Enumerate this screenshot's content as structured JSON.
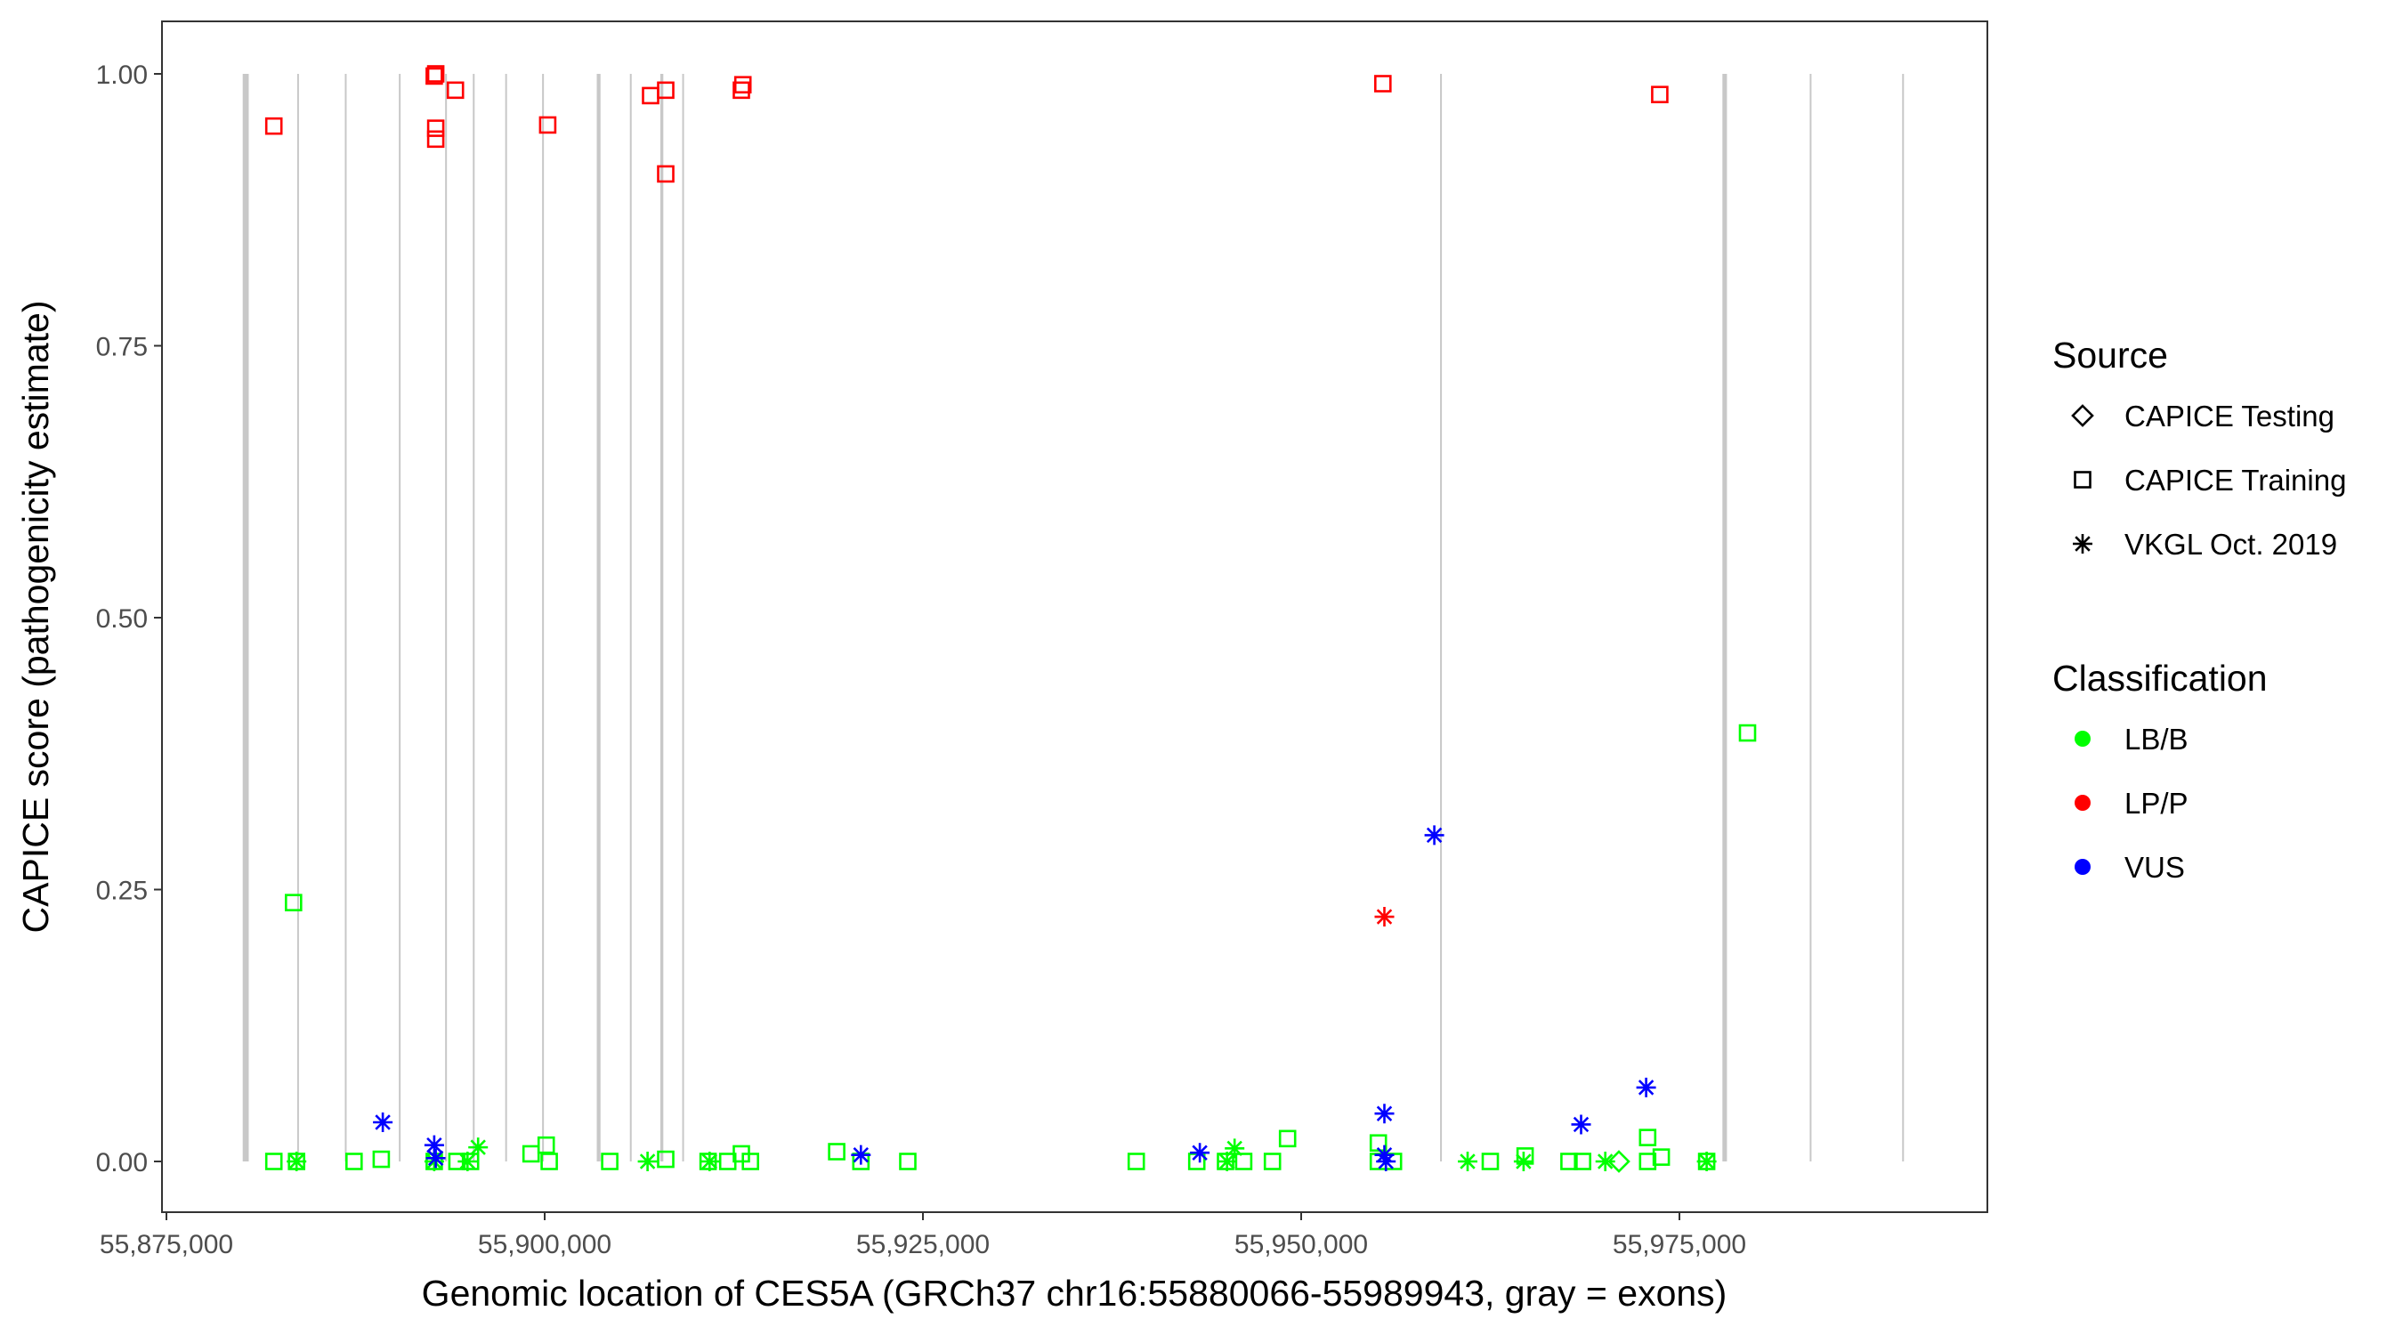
{
  "chart_data": {
    "type": "scatter",
    "xlabel": "Genomic location of CES5A (GRCh37 chr16:55880066-55989943, gray = exons)",
    "ylabel": "CAPICE score (pathogenicity estimate)",
    "xlim": [
      55874700,
      55995400
    ],
    "ylim": [
      -0.047,
      1.048
    ],
    "x_ticks": [
      55875000,
      55900000,
      55925000,
      55950000,
      55975000
    ],
    "x_tick_labels": [
      "55,875,000",
      "55,900,000",
      "55,925,000",
      "55,950,000",
      "55,975,000"
    ],
    "y_ticks": [
      0,
      0.25,
      0.5,
      0.75,
      1.0
    ],
    "y_tick_labels": [
      "0.00",
      "0.25",
      "0.50",
      "0.75",
      "1.00"
    ],
    "grid": false,
    "exon_color": "#c8c8c8",
    "exons": [
      [
        55880100,
        55880500
      ],
      [
        55883700,
        55883800
      ],
      [
        55886850,
        55886950
      ],
      [
        55890420,
        55890520
      ],
      [
        55893480,
        55893580
      ],
      [
        55895310,
        55895410
      ],
      [
        55897450,
        55897550
      ],
      [
        55899890,
        55899990
      ],
      [
        55903500,
        55903750
      ],
      [
        55905690,
        55905790
      ],
      [
        55907700,
        55907900
      ],
      [
        55909150,
        55909250
      ],
      [
        55959240,
        55959340
      ],
      [
        55977900,
        55978200
      ],
      [
        55983670,
        55983770
      ],
      [
        55989780,
        55989880
      ]
    ],
    "legend": {
      "placement": "right",
      "source_title": "Source",
      "source_items": [
        {
          "label": "CAPICE Testing",
          "shape": "diamond"
        },
        {
          "label": "CAPICE Training",
          "shape": "square"
        },
        {
          "label": "VKGL Oct. 2019",
          "shape": "star"
        }
      ],
      "class_title": "Classification",
      "class_items": [
        {
          "label": "LB/B",
          "color": "#00ff00"
        },
        {
          "label": "LP/P",
          "color": "#ff0000"
        },
        {
          "label": "VUS",
          "color": "#0000ff"
        }
      ]
    },
    "colors": {
      "LB/B": "#00ff00",
      "LP/P": "#ff0000",
      "VUS": "#0000ff"
    },
    "points": [
      {
        "x": 55882100,
        "y": 0.952,
        "shape": "square",
        "cls": "LP/P"
      },
      {
        "x": 55892700,
        "y": 0.998,
        "shape": "square",
        "cls": "LP/P"
      },
      {
        "x": 55892800,
        "y": 1.0,
        "shape": "square",
        "cls": "LP/P"
      },
      {
        "x": 55892800,
        "y": 0.95,
        "shape": "square",
        "cls": "LP/P"
      },
      {
        "x": 55892800,
        "y": 0.94,
        "shape": "square",
        "cls": "LP/P"
      },
      {
        "x": 55894100,
        "y": 0.985,
        "shape": "square",
        "cls": "LP/P"
      },
      {
        "x": 55900200,
        "y": 0.953,
        "shape": "square",
        "cls": "LP/P"
      },
      {
        "x": 55907000,
        "y": 0.98,
        "shape": "square",
        "cls": "LP/P"
      },
      {
        "x": 55908000,
        "y": 0.985,
        "shape": "square",
        "cls": "LP/P"
      },
      {
        "x": 55908000,
        "y": 0.908,
        "shape": "square",
        "cls": "LP/P"
      },
      {
        "x": 55913000,
        "y": 0.985,
        "shape": "square",
        "cls": "LP/P"
      },
      {
        "x": 55913100,
        "y": 0.99,
        "shape": "square",
        "cls": "LP/P"
      },
      {
        "x": 55955400,
        "y": 0.991,
        "shape": "square",
        "cls": "LP/P"
      },
      {
        "x": 55973700,
        "y": 0.981,
        "shape": "square",
        "cls": "LP/P"
      },
      {
        "x": 55955500,
        "y": 0.225,
        "shape": "star",
        "cls": "LP/P"
      },
      {
        "x": 55883400,
        "y": 0.238,
        "shape": "square",
        "cls": "LB/B"
      },
      {
        "x": 55979500,
        "y": 0.394,
        "shape": "square",
        "cls": "LB/B"
      },
      {
        "x": 55882100,
        "y": 0.0,
        "shape": "square",
        "cls": "LB/B"
      },
      {
        "x": 55883600,
        "y": 0.0,
        "shape": "square",
        "cls": "LB/B"
      },
      {
        "x": 55887400,
        "y": 0.0,
        "shape": "square",
        "cls": "LB/B"
      },
      {
        "x": 55889200,
        "y": 0.002,
        "shape": "square",
        "cls": "LB/B"
      },
      {
        "x": 55892700,
        "y": 0.0,
        "shape": "square",
        "cls": "LB/B"
      },
      {
        "x": 55894200,
        "y": 0.0,
        "shape": "square",
        "cls": "LB/B"
      },
      {
        "x": 55895100,
        "y": 0.0,
        "shape": "square",
        "cls": "LB/B"
      },
      {
        "x": 55899100,
        "y": 0.007,
        "shape": "square",
        "cls": "LB/B"
      },
      {
        "x": 55900100,
        "y": 0.015,
        "shape": "square",
        "cls": "LB/B"
      },
      {
        "x": 55900300,
        "y": 0.0,
        "shape": "square",
        "cls": "LB/B"
      },
      {
        "x": 55904300,
        "y": 0.0,
        "shape": "square",
        "cls": "LB/B"
      },
      {
        "x": 55908000,
        "y": 0.002,
        "shape": "square",
        "cls": "LB/B"
      },
      {
        "x": 55910800,
        "y": 0.0,
        "shape": "square",
        "cls": "LB/B"
      },
      {
        "x": 55912100,
        "y": 0.0,
        "shape": "square",
        "cls": "LB/B"
      },
      {
        "x": 55913000,
        "y": 0.007,
        "shape": "square",
        "cls": "LB/B"
      },
      {
        "x": 55913600,
        "y": 0.0,
        "shape": "square",
        "cls": "LB/B"
      },
      {
        "x": 55919300,
        "y": 0.009,
        "shape": "square",
        "cls": "LB/B"
      },
      {
        "x": 55920900,
        "y": 0.0,
        "shape": "square",
        "cls": "LB/B"
      },
      {
        "x": 55924000,
        "y": 0.0,
        "shape": "square",
        "cls": "LB/B"
      },
      {
        "x": 55939100,
        "y": 0.0,
        "shape": "square",
        "cls": "LB/B"
      },
      {
        "x": 55943100,
        "y": 0.0,
        "shape": "square",
        "cls": "LB/B"
      },
      {
        "x": 55945000,
        "y": 0.0,
        "shape": "square",
        "cls": "LB/B"
      },
      {
        "x": 55946200,
        "y": 0.0,
        "shape": "square",
        "cls": "LB/B"
      },
      {
        "x": 55948100,
        "y": 0.0,
        "shape": "square",
        "cls": "LB/B"
      },
      {
        "x": 55949100,
        "y": 0.021,
        "shape": "square",
        "cls": "LB/B"
      },
      {
        "x": 55955100,
        "y": 0.017,
        "shape": "square",
        "cls": "LB/B"
      },
      {
        "x": 55955100,
        "y": 0.0,
        "shape": "square",
        "cls": "LB/B"
      },
      {
        "x": 55956100,
        "y": 0.0,
        "shape": "square",
        "cls": "LB/B"
      },
      {
        "x": 55962500,
        "y": 0.0,
        "shape": "square",
        "cls": "LB/B"
      },
      {
        "x": 55964800,
        "y": 0.005,
        "shape": "square",
        "cls": "LB/B"
      },
      {
        "x": 55967700,
        "y": 0.0,
        "shape": "square",
        "cls": "LB/B"
      },
      {
        "x": 55968600,
        "y": 0.0,
        "shape": "square",
        "cls": "LB/B"
      },
      {
        "x": 55972900,
        "y": 0.022,
        "shape": "square",
        "cls": "LB/B"
      },
      {
        "x": 55972900,
        "y": 0.0,
        "shape": "square",
        "cls": "LB/B"
      },
      {
        "x": 55973800,
        "y": 0.004,
        "shape": "square",
        "cls": "LB/B"
      },
      {
        "x": 55976800,
        "y": 0.0,
        "shape": "square",
        "cls": "LB/B"
      },
      {
        "x": 55883600,
        "y": 0.0,
        "shape": "star",
        "cls": "LB/B"
      },
      {
        "x": 55892700,
        "y": 0.0,
        "shape": "star",
        "cls": "LB/B"
      },
      {
        "x": 55895600,
        "y": 0.013,
        "shape": "star",
        "cls": "LB/B"
      },
      {
        "x": 55894900,
        "y": 0.0,
        "shape": "star",
        "cls": "LB/B"
      },
      {
        "x": 55906800,
        "y": 0.0,
        "shape": "star",
        "cls": "LB/B"
      },
      {
        "x": 55910900,
        "y": 0.0,
        "shape": "star",
        "cls": "LB/B"
      },
      {
        "x": 55945600,
        "y": 0.012,
        "shape": "star",
        "cls": "LB/B"
      },
      {
        "x": 55945100,
        "y": 0.0,
        "shape": "star",
        "cls": "LB/B"
      },
      {
        "x": 55961000,
        "y": 0.0,
        "shape": "star",
        "cls": "LB/B"
      },
      {
        "x": 55964700,
        "y": 0.0,
        "shape": "star",
        "cls": "LB/B"
      },
      {
        "x": 55970100,
        "y": 0.0,
        "shape": "star",
        "cls": "LB/B"
      },
      {
        "x": 55976800,
        "y": 0.0,
        "shape": "star",
        "cls": "LB/B"
      },
      {
        "x": 55971000,
        "y": 0.0,
        "shape": "diamond",
        "cls": "LB/B"
      },
      {
        "x": 55889300,
        "y": 0.036,
        "shape": "star",
        "cls": "VUS"
      },
      {
        "x": 55892700,
        "y": 0.015,
        "shape": "star",
        "cls": "VUS"
      },
      {
        "x": 55892800,
        "y": 0.003,
        "shape": "star",
        "cls": "VUS"
      },
      {
        "x": 55920900,
        "y": 0.006,
        "shape": "star",
        "cls": "VUS"
      },
      {
        "x": 55943300,
        "y": 0.008,
        "shape": "star",
        "cls": "VUS"
      },
      {
        "x": 55955500,
        "y": 0.044,
        "shape": "star",
        "cls": "VUS"
      },
      {
        "x": 55955500,
        "y": 0.006,
        "shape": "star",
        "cls": "VUS"
      },
      {
        "x": 55955600,
        "y": 0.0,
        "shape": "star",
        "cls": "VUS"
      },
      {
        "x": 55958800,
        "y": 0.3,
        "shape": "star",
        "cls": "VUS"
      },
      {
        "x": 55968500,
        "y": 0.034,
        "shape": "star",
        "cls": "VUS"
      },
      {
        "x": 55972800,
        "y": 0.068,
        "shape": "star",
        "cls": "VUS"
      }
    ]
  }
}
